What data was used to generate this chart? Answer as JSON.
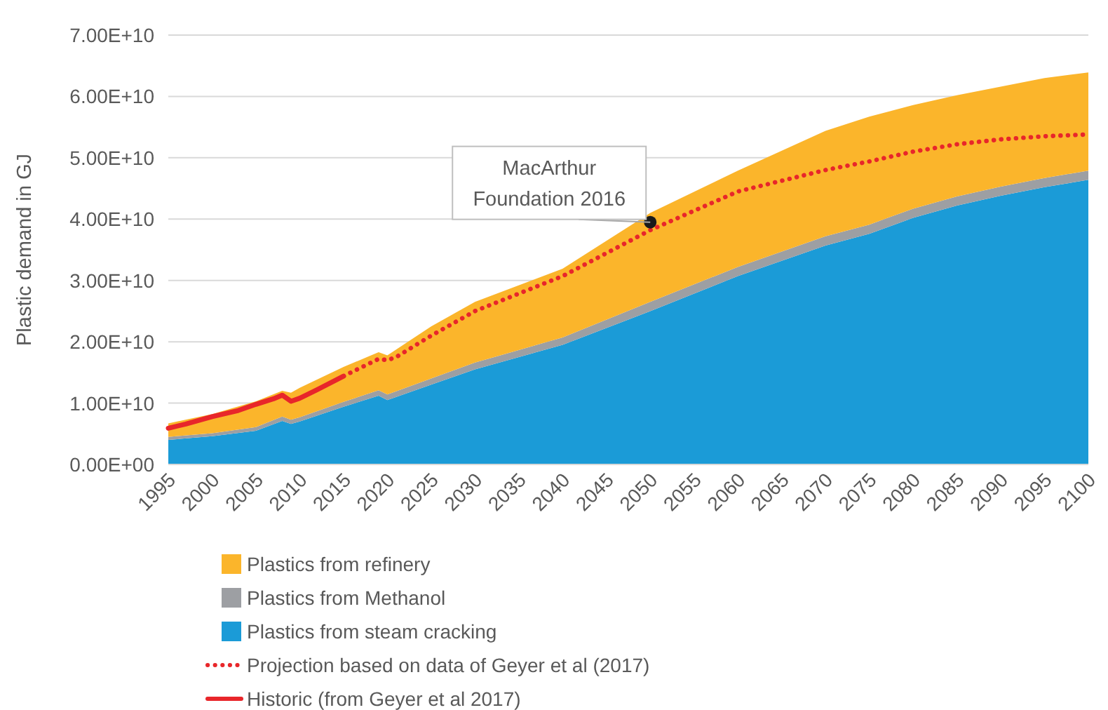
{
  "chart_data": {
    "type": "area",
    "stacked": true,
    "ylabel": "Plastic demand in GJ",
    "grid": "y",
    "legend": "bottom",
    "x": [
      1995,
      2000,
      2005,
      2008,
      2009,
      2010,
      2015,
      2019,
      2020,
      2025,
      2030,
      2040,
      2050,
      2060,
      2070,
      2075,
      2080,
      2085,
      2090,
      2095,
      2100
    ],
    "xlim": [
      1995,
      2100
    ],
    "xticks": [
      1995,
      2000,
      2005,
      2010,
      2015,
      2020,
      2025,
      2030,
      2035,
      2040,
      2045,
      2050,
      2055,
      2060,
      2065,
      2070,
      2075,
      2080,
      2085,
      2090,
      2095,
      2100
    ],
    "ylim": [
      0,
      70000000000.0
    ],
    "yticks": [
      {
        "value": 0,
        "label": "0.00E+00"
      },
      {
        "value": 10000000000.0,
        "label": "1.00E+10"
      },
      {
        "value": 20000000000.0,
        "label": "2.00E+10"
      },
      {
        "value": 30000000000.0,
        "label": "3.00E+10"
      },
      {
        "value": 40000000000.0,
        "label": "4.00E+10"
      },
      {
        "value": 50000000000.0,
        "label": "5.00E+10"
      },
      {
        "value": 60000000000.0,
        "label": "6.00E+10"
      },
      {
        "value": 70000000000.0,
        "label": "7.00E+10"
      }
    ],
    "series": [
      {
        "name": "Plastics from steam cracking",
        "color": "#1b9bd7",
        "values": [
          4000000000.0,
          4600000000.0,
          5500000000.0,
          7100000000.0,
          6600000000.0,
          7000000000.0,
          9400000000.0,
          11200000000.0,
          10500000000.0,
          13000000000.0,
          15500000000.0,
          19500000000.0,
          25000000000.0,
          30700000000.0,
          35700000000.0,
          37600000000.0,
          40200000000.0,
          42200000000.0,
          43800000000.0,
          45200000000.0,
          46400000000.0
        ]
      },
      {
        "name": "Plastics from Methanol",
        "color": "#9d9fa3",
        "values": [
          500000000.0,
          500000000.0,
          600000000.0,
          700000000.0,
          700000000.0,
          700000000.0,
          800000000.0,
          900000000.0,
          900000000.0,
          1000000000.0,
          1100000000.0,
          1200000000.0,
          1500000000.0,
          1500000000.0,
          1500000000.0,
          1500000000.0,
          1500000000.0,
          1500000000.0,
          1500000000.0,
          1500000000.0,
          1500000000.0
        ]
      },
      {
        "name": "Plastics from refinery",
        "color": "#fbb52b",
        "values": [
          2200000000.0,
          3100000000.0,
          4200000000.0,
          4200000000.0,
          4400000000.0,
          4800000000.0,
          5700000000.0,
          6200000000.0,
          6400000000.0,
          8500000000.0,
          9900000000.0,
          11200000000.0,
          14500000000.0,
          15700000000.0,
          17200000000.0,
          17600000000.0,
          16900000000.0,
          16500000000.0,
          16300000000.0,
          16300000000.0,
          16000000000.0
        ]
      },
      {
        "name": "Projection based on data of Geyer et al (2017)",
        "type": "line",
        "line_style": "dotted",
        "color": "#e8262a",
        "x": [
          2015,
          2017,
          2019,
          2020,
          2021,
          2025,
          2030,
          2040,
          2050,
          2060,
          2070,
          2075,
          2080,
          2085,
          2090,
          2095,
          2100
        ],
        "values": [
          14400000000.0,
          15800000000.0,
          17200000000.0,
          17000000000.0,
          17500000000.0,
          21000000000.0,
          25000000000.0,
          30700000000.0,
          38200000000.0,
          44500000000.0,
          48000000000.0,
          49400000000.0,
          51000000000.0,
          52200000000.0,
          53000000000.0,
          53500000000.0,
          53800000000.0
        ]
      },
      {
        "name": "Historic (from Geyer et al 2017)",
        "type": "line",
        "line_style": "solid",
        "color": "#e8262a",
        "x": [
          1995,
          1997,
          2000,
          2003,
          2005,
          2007,
          2008,
          2009,
          2010,
          2012,
          2015
        ],
        "values": [
          5900000000.0,
          6600000000.0,
          7800000000.0,
          8800000000.0,
          9800000000.0,
          10700000000.0,
          11300000000.0,
          10300000000.0,
          10800000000.0,
          12200000000.0,
          14400000000.0
        ]
      },
      {
        "type": "scatter",
        "marker": "circle",
        "color": "#1a1a1a",
        "x": [
          2050
        ],
        "values": [
          39500000000.0
        ]
      }
    ],
    "annotations": [
      {
        "text": "MacArthur Foundation 2016",
        "x": 2050,
        "y": 39500000000.0
      }
    ]
  }
}
